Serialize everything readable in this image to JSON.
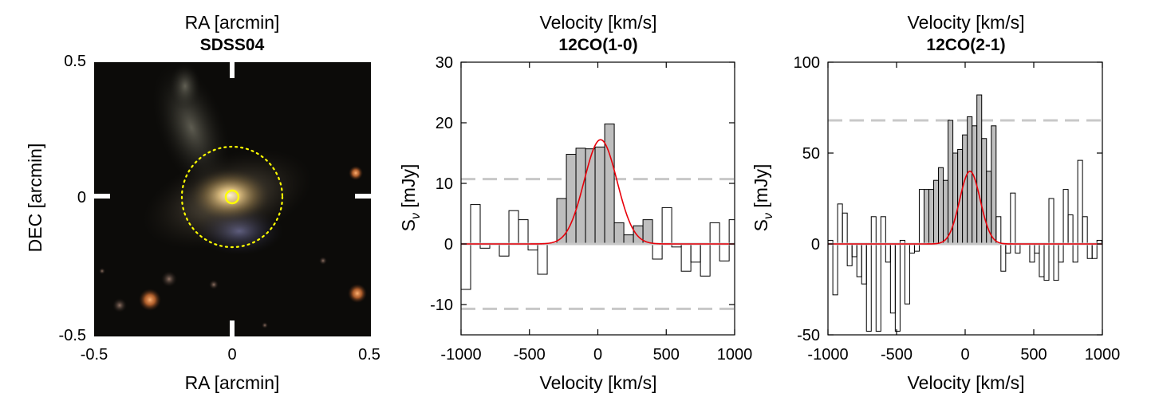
{
  "panels": {
    "image": {
      "top_label": "RA [arcmin]",
      "title": "SDSS04",
      "xlabel": "RA [arcmin]",
      "ylabel": "DEC [arcmin]",
      "xticks": [
        "-0.5",
        "0",
        "0.5"
      ],
      "yticks": [
        "0.5",
        "0",
        "-0.5"
      ]
    }
  },
  "colors": {
    "bar_fill": "#bebebe",
    "gauss": "#e8000a",
    "threshold": "#c8c8c8",
    "aperture": "#ffff00"
  },
  "chart_data": [
    {
      "type": "bar",
      "title": "12CO(1-0)",
      "top_label": "Velocity [km/s]",
      "xlabel": "Velocity [km/s]",
      "ylabel": "S",
      "ylabel_sub": "ν",
      "ylabel_unit": " [mJy]",
      "xlim": [
        -1000,
        1000
      ],
      "ylim": [
        -15,
        30
      ],
      "xticks": [
        -1000,
        -500,
        0,
        500,
        1000
      ],
      "yticks": [
        -10,
        0,
        10,
        20,
        30
      ],
      "bin_width": 70,
      "x": [
        -965,
        -895,
        -825,
        -755,
        -685,
        -615,
        -545,
        -475,
        -405,
        -335,
        -265,
        -195,
        -125,
        -55,
        15,
        85,
        155,
        225,
        295,
        365,
        435,
        505,
        575,
        645,
        715,
        785,
        855,
        925,
        995
      ],
      "values": [
        -7.5,
        6.5,
        -0.7,
        0,
        -2,
        5.5,
        4,
        -1,
        -5,
        0,
        7.5,
        14.8,
        15.8,
        15.7,
        16,
        19.8,
        3.5,
        1.5,
        3,
        4,
        -2.5,
        6,
        -0.5,
        -4.5,
        -3,
        -5.3,
        3.5,
        -2.8,
        4
      ],
      "detection_range": [
        -300,
        400
      ],
      "gauss": {
        "amp": 17.2,
        "center": 20,
        "sigma": 120
      },
      "thresholds": [
        10.7,
        -10.7
      ]
    },
    {
      "type": "bar",
      "title": "12CO(2-1)",
      "top_label": "Velocity [km/s]",
      "xlabel": "Velocity [km/s]",
      "ylabel": "S",
      "ylabel_sub": "ν",
      "ylabel_unit": " [mJy]",
      "xlim": [
        -1000,
        1000
      ],
      "ylim": [
        -50,
        100
      ],
      "xticks": [
        -1000,
        -500,
        0,
        500,
        1000
      ],
      "yticks": [
        -50,
        0,
        50,
        100
      ],
      "bin_width": 35,
      "x": [
        -982,
        -947,
        -912,
        -877,
        -842,
        -807,
        -772,
        -737,
        -702,
        -667,
        -632,
        -597,
        -562,
        -527,
        -492,
        -457,
        -422,
        -387,
        -352,
        -317,
        -282,
        -247,
        -212,
        -177,
        -142,
        -107,
        -72,
        -37,
        -2,
        33,
        68,
        103,
        138,
        173,
        208,
        243,
        278,
        313,
        348,
        383,
        418,
        453,
        488,
        523,
        558,
        593,
        628,
        663,
        698,
        733,
        768,
        803,
        838,
        873,
        908,
        943,
        978
      ],
      "values": [
        2,
        -28,
        22,
        17,
        -12,
        -7,
        -18,
        -22,
        -48,
        15,
        -48,
        15,
        -10,
        -38,
        -48,
        2,
        -33,
        -5,
        -4,
        30,
        30,
        30,
        35,
        42,
        35,
        68,
        50,
        52,
        60,
        70,
        65,
        82,
        58,
        40,
        65,
        15,
        -15,
        -5,
        28,
        -5,
        0,
        0,
        -10,
        -5,
        -18,
        -20,
        25,
        -20,
        -10,
        30,
        16,
        -10,
        46,
        15,
        -8,
        -8,
        2
      ],
      "detection_range": [
        -300,
        240
      ],
      "gauss": {
        "amp": 40,
        "center": 35,
        "sigma": 75
      },
      "thresholds": [
        68
      ]
    }
  ]
}
